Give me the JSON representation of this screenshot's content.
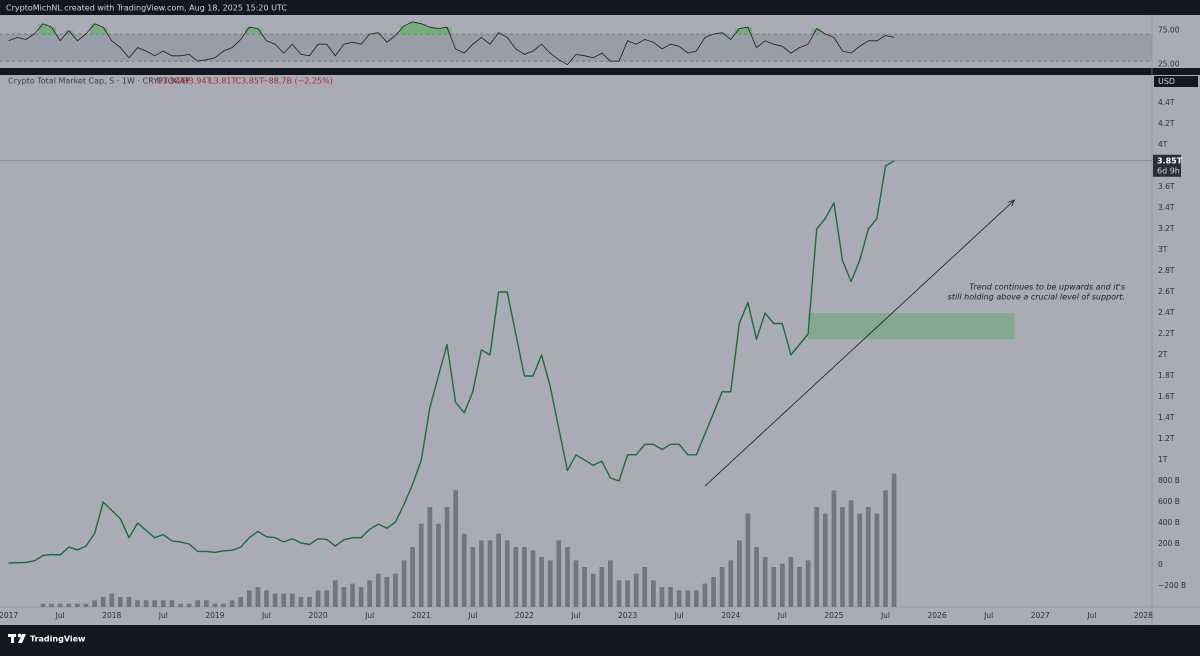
{
  "header": "CryptoMichNL created with TradingView.com, Aug 18, 2025 15:20 UTC",
  "brand": "TradingView",
  "chart_data": {
    "type": "line",
    "legend": {
      "symbol": "Crypto Total Market Cap, S · 1W · CRYPTOCAP",
      "ohlc": [
        "O3.94T",
        "H3.94T",
        "L3.81T",
        "C3.85T",
        "−88.7B (−2.25%)"
      ]
    },
    "currency": "USD",
    "last_price": {
      "value": 3850,
      "label": "3.85T",
      "countdown": "6d 9h"
    },
    "annotation": {
      "lines": [
        "Trend continues to be upwards and it's",
        "still holding above a crucial level of support."
      ]
    },
    "support_zone": {
      "x": [
        "2024-10",
        "2026-10"
      ],
      "y": [
        2150,
        2400
      ],
      "color": "#7fa88a"
    },
    "trend_arrow": {
      "x": [
        "2023-10",
        "2026-10"
      ],
      "y": [
        752,
        3476
      ]
    },
    "x": [
      "2017-01",
      "2017-02",
      "2017-03",
      "2017-04",
      "2017-05",
      "2017-06",
      "2017-07",
      "2017-08",
      "2017-09",
      "2017-10",
      "2017-11",
      "2017-12",
      "2018-01",
      "2018-02",
      "2018-03",
      "2018-04",
      "2018-05",
      "2018-06",
      "2018-07",
      "2018-08",
      "2018-09",
      "2018-10",
      "2018-11",
      "2018-12",
      "2019-01",
      "2019-02",
      "2019-03",
      "2019-04",
      "2019-05",
      "2019-06",
      "2019-07",
      "2019-08",
      "2019-09",
      "2019-10",
      "2019-11",
      "2019-12",
      "2020-01",
      "2020-02",
      "2020-03",
      "2020-04",
      "2020-05",
      "2020-06",
      "2020-07",
      "2020-08",
      "2020-09",
      "2020-10",
      "2020-11",
      "2020-12",
      "2021-01",
      "2021-02",
      "2021-03",
      "2021-04",
      "2021-05",
      "2021-06",
      "2021-07",
      "2021-08",
      "2021-09",
      "2021-10",
      "2021-11",
      "2021-12",
      "2022-01",
      "2022-02",
      "2022-03",
      "2022-04",
      "2022-05",
      "2022-06",
      "2022-07",
      "2022-08",
      "2022-09",
      "2022-10",
      "2022-11",
      "2022-12",
      "2023-01",
      "2023-02",
      "2023-03",
      "2023-04",
      "2023-05",
      "2023-06",
      "2023-07",
      "2023-08",
      "2023-09",
      "2023-10",
      "2023-11",
      "2023-12",
      "2024-01",
      "2024-02",
      "2024-03",
      "2024-04",
      "2024-05",
      "2024-06",
      "2024-07",
      "2024-08",
      "2024-09",
      "2024-10",
      "2024-11",
      "2024-12",
      "2025-01",
      "2025-02",
      "2025-03",
      "2025-04",
      "2025-05",
      "2025-06",
      "2025-07",
      "2025-08"
    ],
    "series": [
      {
        "name": "Crypto Total Market Cap",
        "color": "#1d6b3a",
        "values": [
          18,
          22,
          25,
          40,
          90,
          100,
          95,
          170,
          145,
          180,
          300,
          600,
          520,
          440,
          260,
          400,
          330,
          260,
          290,
          230,
          220,
          200,
          130,
          130,
          120,
          135,
          140,
          170,
          260,
          320,
          270,
          260,
          220,
          250,
          210,
          195,
          250,
          245,
          180,
          240,
          260,
          260,
          340,
          390,
          350,
          410,
          580,
          770,
          1000,
          1500,
          1800,
          2100,
          1550,
          1450,
          1650,
          2050,
          2000,
          2600,
          2600,
          2200,
          1800,
          1800,
          2000,
          1700,
          1300,
          900,
          1050,
          1000,
          950,
          990,
          830,
          800,
          1050,
          1050,
          1150,
          1150,
          1100,
          1150,
          1150,
          1050,
          1050,
          1250,
          1450,
          1650,
          1650,
          2300,
          2500,
          2150,
          2400,
          2300,
          2300,
          2000,
          2100,
          2200,
          3200,
          3300,
          3450,
          2900,
          2700,
          2900,
          3200,
          3300,
          3800,
          3850
        ]
      },
      {
        "name": "Volume",
        "color": "#5d606b",
        "ylim": [
          0,
          45
        ],
        "values": [
          0,
          0,
          0,
          0,
          1,
          1,
          1,
          1,
          1,
          1,
          2,
          3,
          4,
          3,
          3,
          2,
          2,
          2,
          2,
          2,
          1,
          1,
          2,
          2,
          1,
          1,
          2,
          3,
          5,
          6,
          5,
          4,
          4,
          4,
          3,
          3,
          5,
          5,
          8,
          6,
          7,
          6,
          8,
          10,
          9,
          10,
          14,
          18,
          25,
          30,
          25,
          30,
          35,
          22,
          18,
          20,
          20,
          22,
          20,
          18,
          18,
          17,
          15,
          14,
          20,
          18,
          14,
          12,
          10,
          12,
          14,
          8,
          8,
          10,
          12,
          8,
          6,
          6,
          5,
          5,
          5,
          7,
          9,
          12,
          14,
          20,
          28,
          18,
          15,
          12,
          13,
          15,
          12,
          14,
          30,
          28,
          35,
          30,
          32,
          28,
          30,
          28,
          35,
          40
        ]
      }
    ],
    "ylim": [
      -400,
      4667
    ],
    "yticks": [
      {
        "value": -200,
        "label": "−200 B"
      },
      0,
      {
        "value": 200,
        "label": "200 B"
      },
      {
        "value": 400,
        "label": "400 B"
      },
      {
        "value": 600,
        "label": "600 B"
      },
      {
        "value": 800,
        "label": "800 B"
      },
      {
        "value": 1000,
        "label": "1T"
      },
      {
        "value": 1200,
        "label": "1.2T"
      },
      {
        "value": 1400,
        "label": "1.4T"
      },
      {
        "value": 1600,
        "label": "1.6T"
      },
      {
        "value": 1800,
        "label": "1.8T"
      },
      {
        "value": 2000,
        "label": "2T"
      },
      {
        "value": 2200,
        "label": "2.2T"
      },
      {
        "value": 2400,
        "label": "2.4T"
      },
      {
        "value": 2600,
        "label": "2.6T"
      },
      {
        "value": 2800,
        "label": "2.8T"
      },
      {
        "value": 3000,
        "label": "3T"
      },
      {
        "value": 3200,
        "label": "3.2T"
      },
      {
        "value": 3400,
        "label": "3.4T"
      },
      {
        "value": 3600,
        "label": "3.6T"
      },
      {
        "value": 4000,
        "label": "4T"
      },
      {
        "value": 4200,
        "label": "4.2T"
      },
      {
        "value": 4400,
        "label": "4.4T"
      }
    ],
    "xlim": [
      "2016-12",
      "2028-02"
    ],
    "xticks": [
      {
        "value": "2017-01",
        "label": "2017"
      },
      {
        "value": "2017-07",
        "label": "Jul"
      },
      {
        "value": "2018-01",
        "label": "2018"
      },
      {
        "value": "2018-07",
        "label": "Jul"
      },
      {
        "value": "2019-01",
        "label": "2019"
      },
      {
        "value": "2019-07",
        "label": "Jul"
      },
      {
        "value": "2020-01",
        "label": "2020"
      },
      {
        "value": "2020-07",
        "label": "Jul"
      },
      {
        "value": "2021-01",
        "label": "2021"
      },
      {
        "value": "2021-07",
        "label": "Jul"
      },
      {
        "value": "2022-01",
        "label": "2022"
      },
      {
        "value": "2022-07",
        "label": "Jul"
      },
      {
        "value": "2023-01",
        "label": "2023"
      },
      {
        "value": "2023-07",
        "label": "Jul"
      },
      {
        "value": "2024-01",
        "label": "2024"
      },
      {
        "value": "2024-07",
        "label": "Jul"
      },
      {
        "value": "2025-01",
        "label": "2025"
      },
      {
        "value": "2025-07",
        "label": "Jul"
      },
      {
        "value": "2026-01",
        "label": "2026"
      },
      {
        "value": "2026-07",
        "label": "Jul"
      },
      {
        "value": "2027-01",
        "label": "2027"
      },
      {
        "value": "2027-07",
        "label": "Jul"
      },
      {
        "value": "2028-01",
        "label": "2028"
      }
    ],
    "rsi": {
      "color": "#1e1e1e",
      "band": [
        30,
        70
      ],
      "ylim": [
        20,
        98
      ],
      "yticks": [
        {
          "value": 25,
          "label": "25.00"
        },
        {
          "value": 75,
          "label": "75.00"
        }
      ],
      "values": [
        60,
        65,
        62,
        70,
        85,
        80,
        60,
        75,
        60,
        70,
        85,
        80,
        60,
        50,
        35,
        50,
        45,
        38,
        45,
        38,
        38,
        40,
        30,
        32,
        35,
        45,
        50,
        62,
        80,
        78,
        60,
        55,
        42,
        55,
        40,
        38,
        55,
        55,
        38,
        55,
        58,
        55,
        70,
        72,
        58,
        68,
        82,
        88,
        85,
        80,
        78,
        80,
        48,
        42,
        55,
        65,
        55,
        72,
        65,
        48,
        40,
        45,
        55,
        42,
        32,
        25,
        40,
        38,
        35,
        42,
        30,
        30,
        60,
        55,
        62,
        58,
        48,
        55,
        52,
        42,
        45,
        65,
        70,
        72,
        62,
        78,
        80,
        50,
        60,
        55,
        52,
        42,
        50,
        55,
        78,
        70,
        65,
        45,
        42,
        52,
        60,
        60,
        68,
        65
      ]
    }
  }
}
